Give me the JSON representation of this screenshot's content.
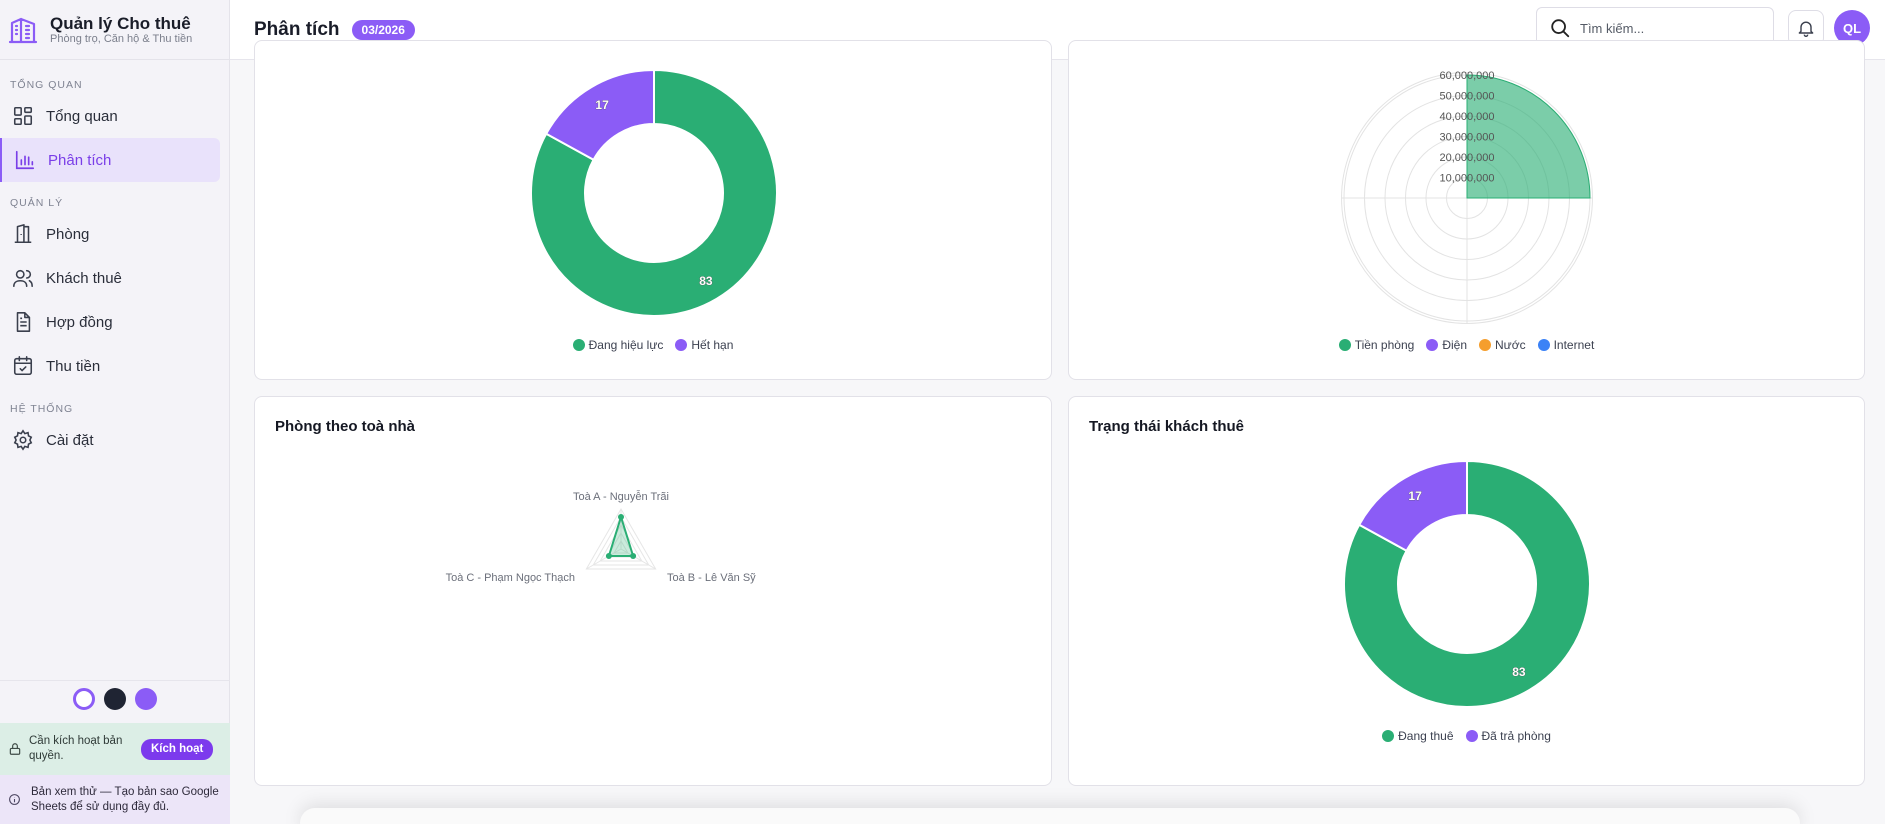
{
  "sidebar": {
    "brand_title": "Quản lý Cho thuê",
    "brand_subtitle": "Phòng trọ, Căn hộ & Thu tiền",
    "sections": {
      "overview": "TỔNG QUAN",
      "management": "QUẢN LÝ",
      "system": "HỆ THỐNG"
    },
    "items": {
      "dashboard": "Tổng quan",
      "analytics": "Phân tích",
      "rooms": "Phòng",
      "tenants": "Khách thuê",
      "contracts": "Hợp đồng",
      "payments": "Thu tiền",
      "settings": "Cài đặt"
    },
    "theme_colors": [
      "#ffffff",
      "#1f2433",
      "#8b5cf6"
    ],
    "license_text": "Cần kích hoạt bản quyền.",
    "activate_label": "Kích hoạt",
    "preview_text": "Bản xem thử — Tạo bản sao Google Sheets để sử dụng đầy đủ."
  },
  "header": {
    "title": "Phân tích",
    "period": "03/2026",
    "search_placeholder": "Tìm kiếm...",
    "avatar_initials": "QL"
  },
  "colors": {
    "green": "#2aae74",
    "purple": "#8b5cf6",
    "orange": "#f59e2d",
    "blue": "#3b82f6",
    "accent": "#7c3aed"
  },
  "charts": {
    "contracts": {
      "legend": [
        "Đang hiệu lực",
        "Hết hạn"
      ]
    },
    "revenue": {
      "legend": [
        "Tiền phòng",
        "Điện",
        "Nước",
        "Internet"
      ]
    },
    "rooms_by_building": {
      "title": "Phòng theo toà nhà"
    },
    "tenant_status": {
      "title": "Trạng thái khách thuê",
      "legend": [
        "Đang thuê",
        "Đã trả phòng"
      ]
    }
  },
  "chart_data": [
    {
      "type": "pie",
      "title": "",
      "categories": [
        "Đang hiệu lực",
        "Hết hạn"
      ],
      "values": [
        83,
        17
      ],
      "value_labels": [
        "83",
        "17"
      ]
    },
    {
      "type": "polar-area",
      "title": "",
      "categories": [
        "Tiền phòng",
        "Điện",
        "Nước",
        "Internet"
      ],
      "values": [
        60000000,
        0,
        0,
        0
      ],
      "rlim": [
        0,
        60000000
      ],
      "ticks": [
        "10,000,000",
        "20,000,000",
        "30,000,000",
        "40,000,000",
        "50,000,000",
        "60,000,000"
      ]
    },
    {
      "type": "radar",
      "title": "Phòng theo toà nhà",
      "categories": [
        "Toà A - Nguyễn Trãi",
        "Toà B - Lê Văn Sỹ",
        "Toà C - Phạm Ngọc Thạch"
      ],
      "values": [
        0.8,
        0.35,
        0.35
      ],
      "rlim": [
        0,
        1
      ]
    },
    {
      "type": "pie",
      "title": "Trạng thái khách thuê",
      "categories": [
        "Đang thuê",
        "Đã trả phòng"
      ],
      "values": [
        83,
        17
      ],
      "value_labels": [
        "83",
        "17"
      ]
    }
  ]
}
